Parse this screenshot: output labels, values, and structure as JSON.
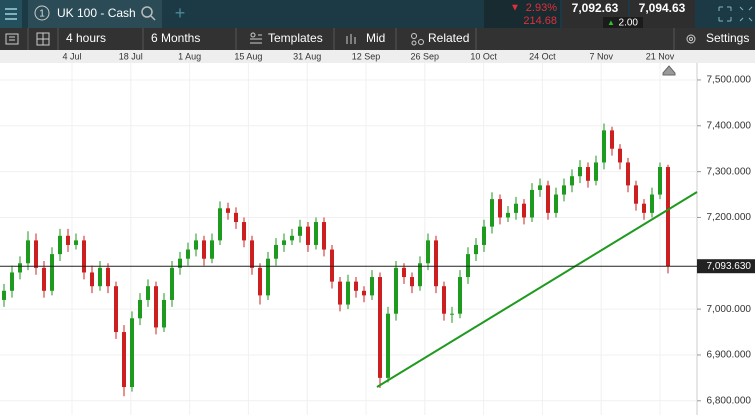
{
  "toolbar": {
    "tab_number": "1",
    "instrument": "UK 100 - Cash",
    "change_pct": "2.93%",
    "change_pts": "214.68",
    "sell": "7,092.63",
    "spread": "2.00",
    "buy": "7,094.63"
  },
  "chart_toolbar": {
    "interval": "4 hours",
    "range": "6 Months",
    "templates": "Templates",
    "price_type": "Mid",
    "related": "Related",
    "settings": "Settings"
  },
  "chart_data": {
    "type": "candlestick",
    "date_labels": [
      "4 Jul",
      "18 Jul",
      "1 Aug",
      "15 Aug",
      "31 Aug",
      "12 Sep",
      "26 Sep",
      "10 Oct",
      "24 Oct",
      "7 Nov",
      "21 Nov"
    ],
    "open": [
      7020,
      7040,
      7080,
      7100,
      7150,
      7090,
      7040,
      7120,
      7160,
      7140,
      7150,
      7080,
      7050,
      7090,
      7050,
      6950,
      6830,
      6980,
      7020,
      7050,
      6960,
      7020,
      7090,
      7110,
      7130,
      7150,
      7110,
      7150,
      7220,
      7210,
      7190,
      7150,
      7090,
      7030,
      7110,
      7140,
      7150,
      7160,
      7180,
      7140,
      7190,
      7130,
      7060,
      7010,
      7060,
      7040,
      7030,
      7070,
      6850,
      6990,
      7090,
      7070,
      7050,
      7100,
      7150,
      7050,
      6990,
      6990,
      7070,
      7120,
      7140,
      7180,
      7240,
      7200,
      7210,
      7230,
      7200,
      7260,
      7270,
      7210,
      7250,
      7270,
      7290,
      7310,
      7280,
      7320,
      7390,
      7350,
      7320,
      7270,
      7230,
      7210,
      7250,
      7310
    ],
    "high": [
      7055,
      7095,
      7115,
      7170,
      7165,
      7105,
      7135,
      7175,
      7175,
      7165,
      7160,
      7095,
      7105,
      7100,
      7060,
      6965,
      6995,
      7035,
      7065,
      7060,
      7035,
      7105,
      7125,
      7145,
      7165,
      7160,
      7165,
      7235,
      7232,
      7222,
      7200,
      7160,
      7100,
      7125,
      7155,
      7165,
      7175,
      7195,
      7190,
      7200,
      7200,
      7140,
      7070,
      7075,
      7070,
      7050,
      7085,
      7080,
      7005,
      7105,
      7100,
      7080,
      7115,
      7165,
      7160,
      7060,
      7005,
      7085,
      7135,
      7155,
      7195,
      7255,
      7250,
      7225,
      7245,
      7240,
      7275,
      7285,
      7280,
      7265,
      7285,
      7305,
      7325,
      7320,
      7335,
      7405,
      7398,
      7360,
      7330,
      7280,
      7240,
      7265,
      7320,
      7315
    ],
    "low": [
      7005,
      7025,
      7065,
      7085,
      7075,
      7025,
      7030,
      7105,
      7125,
      7130,
      7065,
      7035,
      7040,
      7035,
      6935,
      6810,
      6820,
      6965,
      7005,
      6945,
      6950,
      7005,
      7075,
      7095,
      7115,
      7095,
      7100,
      7140,
      7195,
      7175,
      7135,
      7075,
      7010,
      7020,
      7095,
      7125,
      7140,
      7145,
      7125,
      7130,
      7115,
      7045,
      6995,
      7000,
      7025,
      7015,
      7020,
      6828,
      6840,
      6975,
      7055,
      7035,
      7040,
      7085,
      7035,
      6975,
      6970,
      6980,
      7055,
      7105,
      7125,
      7165,
      7185,
      7190,
      7195,
      7185,
      7190,
      7245,
      7195,
      7200,
      7235,
      7255,
      7275,
      7265,
      7270,
      7305,
      7335,
      7305,
      7255,
      7215,
      7195,
      7200,
      7240,
      7078
    ],
    "close": [
      7040,
      7080,
      7100,
      7150,
      7090,
      7040,
      7120,
      7160,
      7140,
      7150,
      7080,
      7050,
      7090,
      7050,
      6950,
      6830,
      6980,
      7020,
      7050,
      6960,
      7020,
      7090,
      7110,
      7130,
      7150,
      7110,
      7150,
      7220,
      7210,
      7190,
      7150,
      7090,
      7030,
      7110,
      7140,
      7150,
      7160,
      7180,
      7140,
      7190,
      7130,
      7060,
      7010,
      7060,
      7040,
      7030,
      7070,
      6850,
      6990,
      7090,
      7070,
      7050,
      7100,
      7150,
      7050,
      6990,
      6990,
      7070,
      7120,
      7140,
      7180,
      7240,
      7200,
      7210,
      7230,
      7200,
      7260,
      7270,
      7210,
      7250,
      7270,
      7290,
      7310,
      7280,
      7320,
      7390,
      7350,
      7320,
      7270,
      7230,
      7210,
      7250,
      7310,
      7094
    ],
    "up_color": "#1e9a1e",
    "down_color": "#cc2020",
    "ylim": [
      6769,
      7537
    ],
    "yticks": [
      {
        "value": 7500,
        "label": "7,500.000"
      },
      {
        "value": 7400,
        "label": "7,400.000"
      },
      {
        "value": 7300,
        "label": "7,300.000"
      },
      {
        "value": 7200,
        "label": "7,200.000"
      },
      {
        "value": 7000,
        "label": "7,000.000"
      },
      {
        "value": 6900,
        "label": "6,900.000"
      },
      {
        "value": 6800,
        "label": "6,800.000"
      }
    ],
    "current_price": {
      "value": 7093.63,
      "label": "7,093.630"
    },
    "grid": true
  }
}
